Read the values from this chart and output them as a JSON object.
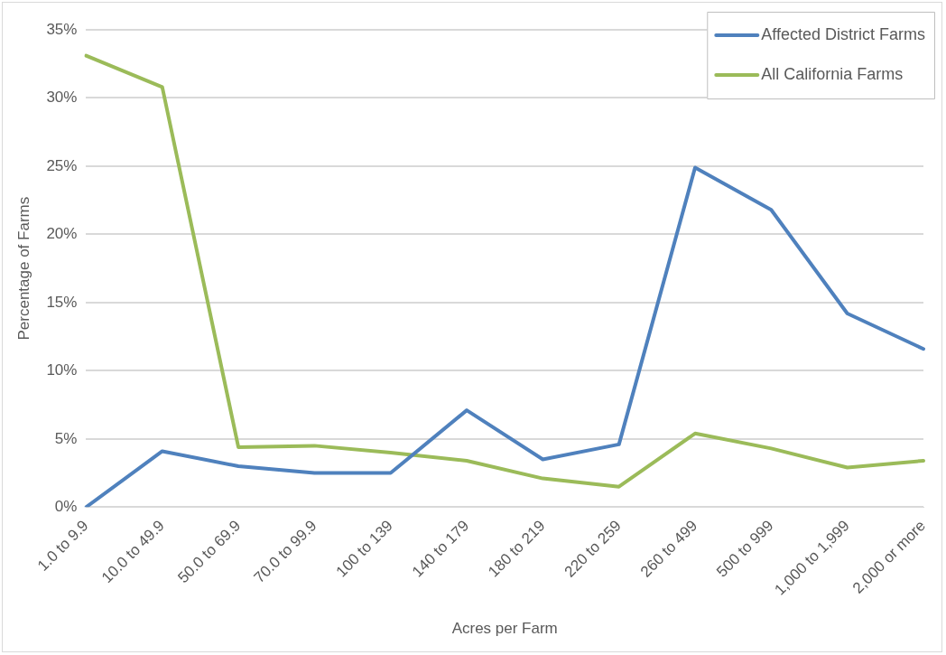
{
  "chart_data": {
    "type": "line",
    "xlabel": "Acres per Farm",
    "ylabel": "Percentage of Farms",
    "categories": [
      "1.0 to 9.9",
      "10.0 to 49.9",
      "50.0 to 69.9",
      "70.0 to 99.9",
      "100 to 139",
      "140 to 179",
      "180 to 219",
      "220 to 259",
      "260 to 499",
      "500 to 999",
      "1,000 to 1,999",
      "2,000 or more"
    ],
    "series": [
      {
        "name": "Affected District Farms",
        "color": "#4f81bd",
        "values": [
          0,
          4.1,
          3.0,
          2.5,
          2.5,
          7.1,
          3.5,
          4.6,
          24.9,
          21.8,
          14.2,
          11.6
        ]
      },
      {
        "name": "All California Farms",
        "color": "#9bbb59",
        "values": [
          33.1,
          30.8,
          4.4,
          4.5,
          4.0,
          3.4,
          2.1,
          1.5,
          5.4,
          4.3,
          2.9,
          3.4
        ]
      }
    ],
    "ylim": [
      0,
      35
    ],
    "yticks": [
      {
        "value": 0,
        "label": "0%"
      },
      {
        "value": 5,
        "label": "5%"
      },
      {
        "value": 10,
        "label": "10%"
      },
      {
        "value": 15,
        "label": "15%"
      },
      {
        "value": 20,
        "label": "20%"
      },
      {
        "value": 25,
        "label": "25%"
      },
      {
        "value": 30,
        "label": "30%"
      },
      {
        "value": 35,
        "label": "35%"
      }
    ],
    "grid": "y",
    "legend": "top right",
    "marker": "none",
    "line_style": "solid"
  }
}
